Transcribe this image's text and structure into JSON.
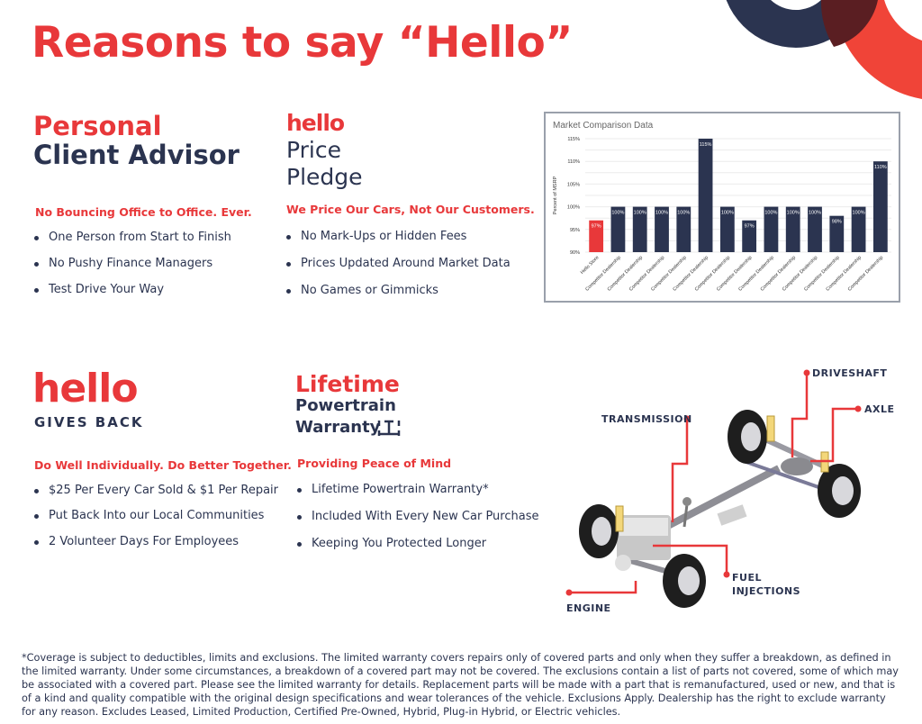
{
  "title": "Reasons to say “Hello”",
  "colors": {
    "brand_red": "#e8383a",
    "navy": "#2b3450"
  },
  "advisor": {
    "title_line1": "Personal",
    "title_line2": "Client Advisor",
    "subheading": "No Bouncing Office to Office. Ever.",
    "bullets": [
      "One Person from Start to Finish",
      "No Pushy Finance Managers",
      "Test Drive Your Way"
    ]
  },
  "pledge": {
    "logo": "hello",
    "title_line1": "Price",
    "title_line2": "Pledge",
    "subheading": "We Price Our Cars, Not Our Customers.",
    "bullets": [
      "No Mark-Ups or Hidden Fees",
      "Prices Updated Around Market Data",
      "No Games or Gimmicks"
    ]
  },
  "gives_back": {
    "logo": "hello",
    "logo_sub": "GIVES BACK",
    "subheading": "Do Well Individually. Do Better Together.",
    "bullets": [
      "$25 Per Every Car Sold & $1 Per Repair",
      "Put Back Into our Local Communities",
      "2 Volunteer Days For Employees"
    ]
  },
  "warranty": {
    "logo_line1": "Lifetime",
    "logo_line2": "Powertrain",
    "logo_line3": "Warranty",
    "logo_icon": "chassis-icon",
    "subheading": "Providing Peace of Mind",
    "bullets": [
      "Lifetime Powertrain Warranty*",
      "Included With Every New Car Purchase",
      "Keeping You Protected Longer"
    ]
  },
  "diagram_labels": {
    "driveshaft": "DRIVESHAFT",
    "axle": "AXLE",
    "transmission": "TRANSMISSION",
    "fuel_injections_1": "FUEL",
    "fuel_injections_2": "INJECTIONS",
    "engine": "ENGINE"
  },
  "chart_data": {
    "type": "bar",
    "title": "Market Comparison Data",
    "ylabel": "Percent of MSRP",
    "xlabel": "",
    "ylim": [
      90,
      115
    ],
    "yticks": [
      "90%",
      "95%",
      "100%",
      "105%",
      "110%",
      "115%"
    ],
    "grid": true,
    "categories": [
      "Hello Store",
      "Competitor Dealership",
      "Competitor Dealership",
      "Competitor Dealership",
      "Competitor Dealership",
      "Competitor Dealership",
      "Competitor Dealership",
      "Competitor Dealership",
      "Competitor Dealership",
      "Competitor Dealership",
      "Competitor Dealership",
      "Competitor Dealership",
      "Competitor Dealership",
      "Competitor Dealership"
    ],
    "values": [
      97,
      100,
      100,
      100,
      100,
      115,
      100,
      97,
      100,
      100,
      100,
      98,
      100,
      110
    ],
    "data_labels": [
      "97%",
      "100%",
      "100%",
      "100%",
      "100%",
      "115%",
      "100%",
      "97%",
      "100%",
      "100%",
      "100%",
      "98%",
      "100%",
      "110%"
    ],
    "bar_colors": [
      "#e8383a",
      "#2b3450"
    ]
  },
  "footnote": "*Coverage is subject to deductibles, limits and exclusions. The limited warranty covers repairs only of covered parts and only when they suffer a breakdown, as defined in the limited warranty. Under some circumstances, a breakdown of a covered part may not be covered. The exclusions contain a list of parts not covered, some of which may be associated with a covered part. Please see the limited warranty for details. Replacement parts will be made with a part that is remanufactured, used or new, and that is of a kind and quality compatible with the original design specifications and wear tolerances of the vehicle. Exclusions Apply. Dealership has the right to exclude warranty for any reason. Excludes Leased, Limited Production, Certified Pre-Owned, Hybrid, Plug-in Hybrid, or Electric vehicles."
}
